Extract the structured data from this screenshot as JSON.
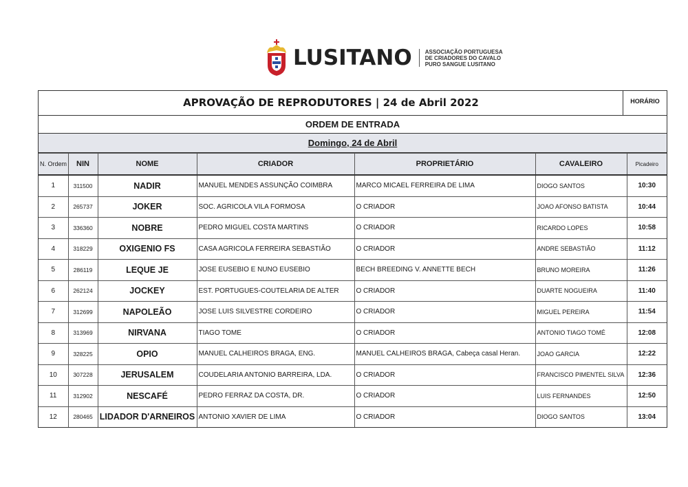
{
  "header": {
    "brand": "LUSITANO",
    "association_lines": [
      "ASSOCIAÇÃO PORTUGUESA",
      "DE CRIADORES DO CAVALO",
      "PURO SANGUE LUSITANO"
    ]
  },
  "document": {
    "title": "APROVAÇÃO DE REPRODUTORES | 24 de Abril 2022",
    "horario_label": "HORÁRIO",
    "section": "ORDEM DE ENTRADA",
    "day": "Domingo, 24 de Abril"
  },
  "table": {
    "columns": [
      "N. Ordem",
      "NIN",
      "NOME",
      "CRIADOR",
      "PROPRIETÁRIO",
      "CAVALEIRO",
      "Picadeiro"
    ],
    "rows": [
      [
        "1",
        "311500",
        "NADIR",
        "MANUEL MENDES ASSUNÇÃO COIMBRA",
        "MARCO MICAEL FERREIRA DE LIMA",
        "DIOGO SANTOS",
        "10:30"
      ],
      [
        "2",
        "265737",
        "JOKER",
        "SOC. AGRICOLA VILA FORMOSA",
        "O CRIADOR",
        "JOAO AFONSO BATISTA",
        "10:44"
      ],
      [
        "3",
        "336360",
        "NOBRE",
        "PEDRO MIGUEL COSTA MARTINS",
        "O CRIADOR",
        "RICARDO LOPES",
        "10:58"
      ],
      [
        "4",
        "318229",
        "OXIGENIO FS",
        "CASA AGRICOLA FERREIRA SEBASTIÃO",
        "O CRIADOR",
        "ANDRE SEBASTIÃO",
        "11:12"
      ],
      [
        "5",
        "286119",
        "LEQUE JE",
        "JOSE EUSEBIO E NUNO EUSEBIO",
        "BECH BREEDING V. ANNETTE BECH",
        "BRUNO MOREIRA",
        "11:26"
      ],
      [
        "6",
        "262124",
        "JOCKEY",
        "EST. PORTUGUES-COUTELARIA DE ALTER",
        "O CRIADOR",
        "DUARTE NOGUEIRA",
        "11:40"
      ],
      [
        "7",
        "312699",
        "NAPOLEÃO",
        "JOSE LUIS SILVESTRE CORDEIRO",
        "O CRIADOR",
        "MIGUEL PEREIRA",
        "11:54"
      ],
      [
        "8",
        "313969",
        "NIRVANA",
        "TIAGO TOME",
        "O CRIADOR",
        "ANTONIO TIAGO TOMÉ",
        "12:08"
      ],
      [
        "9",
        "328225",
        "OPIO",
        "MANUEL CALHEIROS BRAGA, ENG.",
        "MANUEL CALHEIROS BRAGA, Cabeça casal  Heran.",
        "JOAO GARCIA",
        "12:22"
      ],
      [
        "10",
        "307228",
        "JERUSALEM",
        "COUDELARIA ANTONIO BARREIRA, LDA.",
        "O CRIADOR",
        "FRANCISCO PIMENTEL SILVA",
        "12:36"
      ],
      [
        "11",
        "312902",
        "NESCAFÉ",
        "PEDRO FERRAZ DA COSTA, DR.",
        "O CRIADOR",
        "LUIS FERNANDES",
        "12:50"
      ],
      [
        "12",
        "280465",
        "LIDADOR D'ARNEIROS",
        "ANTONIO XAVIER DE LIMA",
        "O CRIADOR",
        "DIOGO SANTOS",
        "13:04"
      ]
    ]
  },
  "colors": {
    "header_bg": "#e4e6ec",
    "crest_red": "#c8202a",
    "crest_gold": "#e8b830",
    "crest_blue": "#2a4fa0"
  }
}
